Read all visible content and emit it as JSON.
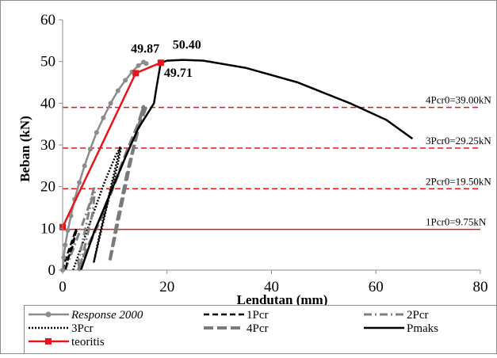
{
  "chart_data": {
    "type": "line",
    "xlabel": "Lendutan (mm)",
    "ylabel": "Beban (kN)",
    "xlim": [
      0,
      80
    ],
    "ylim": [
      0,
      60
    ],
    "xticks": [
      "0",
      "20",
      "40",
      "60",
      "80"
    ],
    "yticks": [
      "0",
      "10",
      "20",
      "30",
      "40",
      "50",
      "60"
    ],
    "grid": false,
    "legend_position": "bottom",
    "reference_lines": [
      {
        "label": "1Pcr0=9.75kN",
        "y": 9.75,
        "style": "solid",
        "color": "#e8141c"
      },
      {
        "label": "2Pcr0=19.50kN",
        "y": 19.5,
        "style": "dashed",
        "color": "#e8141c"
      },
      {
        "label": "3Pcr0=29.25kN",
        "y": 29.25,
        "style": "dashed",
        "color": "#e8141c"
      },
      {
        "label": "4Pcr0=39.00kN",
        "y": 39.0,
        "style": "dashed",
        "color": "#e8141c"
      }
    ],
    "annotations": [
      {
        "text": "49.87",
        "x": 15.5,
        "y": 49.87
      },
      {
        "text": "50.40",
        "x": 23.5,
        "y": 50.4
      },
      {
        "text": "49.71",
        "x": 18.8,
        "y": 49.71
      }
    ],
    "series": [
      {
        "name": "Response 2000",
        "style": "marker-line",
        "color": "#8c8c8c",
        "x": [
          0,
          0.2,
          0.5,
          1.0,
          1.6,
          2.3,
          3.2,
          4.2,
          5.3,
          6.5,
          7.8,
          9.2,
          10.6,
          12.0,
          13.3,
          14.5,
          15.5,
          16.0
        ],
        "y": [
          0,
          3,
          6,
          9.5,
          13,
          17,
          21,
          25,
          29,
          33,
          36.5,
          40,
          43,
          45.5,
          47.5,
          49,
          49.87,
          49.5
        ]
      },
      {
        "name": "1Pcr",
        "style": "dashed",
        "color": "#000000",
        "x": [
          0,
          0.8,
          1.8,
          2.6,
          2.0,
          1.0,
          0.5,
          1.2,
          2.0,
          2.8
        ],
        "y": [
          0,
          3.5,
          7,
          9.9,
          6,
          2.5,
          0,
          3.5,
          7,
          9.9
        ]
      },
      {
        "name": "2Pcr",
        "style": "dashdot",
        "color": "#808080",
        "x": [
          0.5,
          2.0,
          3.8,
          5.2,
          6.0,
          5.2,
          4.2,
          3.0,
          3.2,
          4.5,
          5.8,
          6.2
        ],
        "y": [
          0,
          5,
          11,
          16,
          19.6,
          15,
          9,
          2,
          0,
          7,
          14,
          19.6
        ]
      },
      {
        "name": "3Pcr",
        "style": "dotted",
        "color": "#000000",
        "x": [
          2.0,
          4.0,
          6.0,
          8.0,
          10.0,
          11.0,
          10.0,
          8.5,
          7.0,
          6.0,
          7.5,
          9.0,
          10.5,
          11.2
        ],
        "y": [
          0,
          7,
          14,
          21,
          27,
          29.4,
          24,
          16,
          8,
          2,
          10,
          18,
          25,
          29.4
        ]
      },
      {
        "name": "4Pcr",
        "style": "longdash",
        "color": "#7a7a7a",
        "x": [
          3.0,
          5.0,
          7.5,
          10.0,
          12.5,
          14.5,
          15.5,
          14.5,
          13.0,
          11.5,
          10.0,
          9.0,
          10.5,
          12.5,
          14.5,
          16.0
        ],
        "y": [
          0,
          6,
          13,
          21,
          29,
          35,
          39.2,
          34,
          26,
          17,
          8,
          2,
          12,
          24,
          34,
          39.2
        ]
      },
      {
        "name": "Pmaks",
        "style": "solid",
        "color": "#000000",
        "x": [
          3.5,
          6.0,
          9.0,
          12.0,
          14.5,
          16.5,
          17.5,
          18.0,
          18.8,
          20,
          23,
          27,
          35,
          45,
          55,
          62,
          67
        ],
        "y": [
          0,
          9,
          18,
          27,
          34,
          38,
          40,
          44,
          49.71,
          50.2,
          50.4,
          50.2,
          48.5,
          45,
          40,
          36,
          31.5
        ]
      },
      {
        "name": "teoritis",
        "style": "marker-line",
        "color": "#e8141c",
        "x": [
          0,
          14.0,
          18.8
        ],
        "y": [
          10.3,
          47.2,
          49.71
        ]
      }
    ]
  }
}
